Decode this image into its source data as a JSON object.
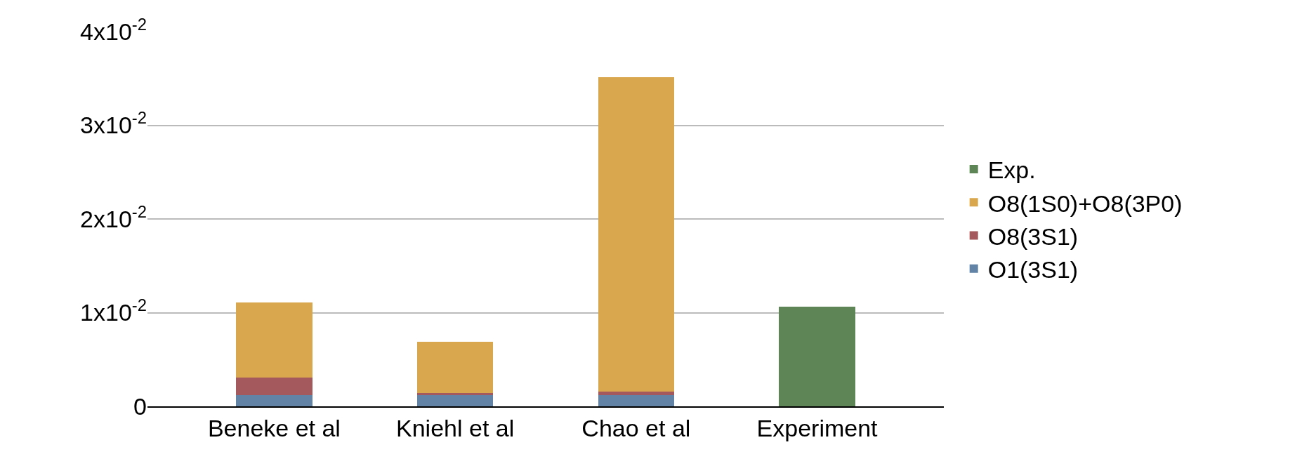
{
  "chart_data": {
    "type": "bar",
    "stacked": true,
    "categories": [
      "Beneke et al",
      "Kniehl et al",
      "Chao et al",
      "Experiment"
    ],
    "series": [
      {
        "name": "O1(3S1)",
        "color": "#6283a6",
        "values": [
          0.0012,
          0.0012,
          0.0012,
          null
        ]
      },
      {
        "name": "O8(3S1)",
        "color": "#a45a5c",
        "values": [
          0.0019,
          0.0002,
          0.0004,
          null
        ]
      },
      {
        "name": "O8(1S0)+O8(3P0)",
        "color": "#d9a84e",
        "values": [
          0.008,
          0.0055,
          0.0335,
          null
        ]
      },
      {
        "name": "Exp.",
        "color": "#5d8555",
        "values": [
          null,
          null,
          null,
          0.0106
        ]
      }
    ],
    "ylim": [
      0,
      0.04
    ],
    "yticks": [
      0,
      {
        "value": 0.01,
        "label": "1x10$^{-2}$"
      },
      {
        "value": 0.02,
        "label": "2x10$^{-2}$"
      },
      {
        "value": 0.03,
        "label": "3x10$^{-2}$"
      },
      {
        "value": 0.04,
        "label": "4x10$^{-2}$"
      }
    ],
    "grid": "y",
    "legend": "right"
  }
}
